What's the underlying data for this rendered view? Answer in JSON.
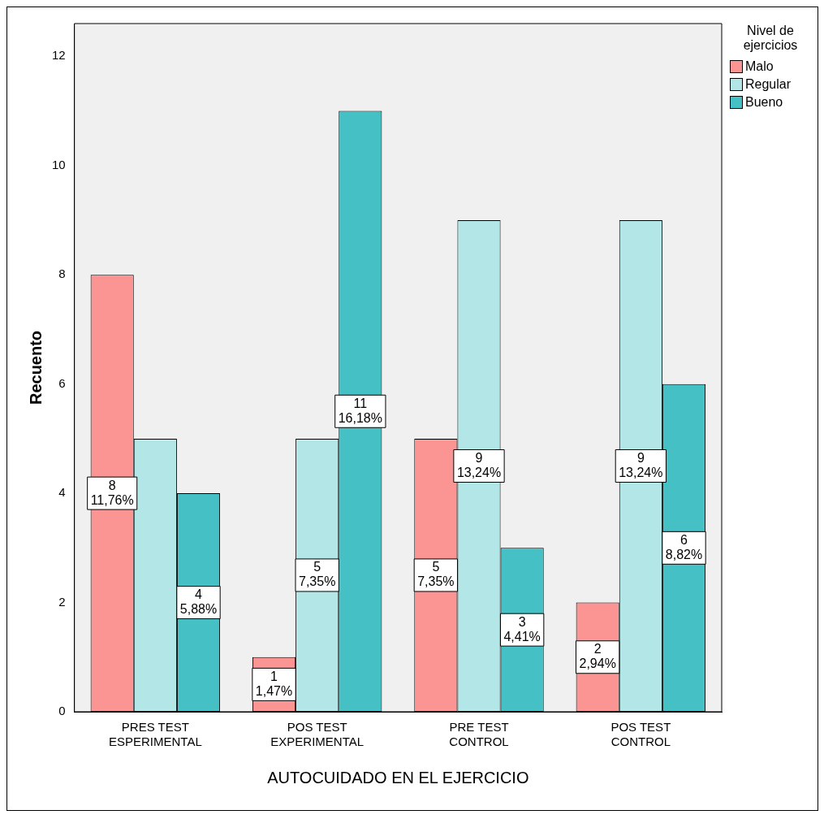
{
  "chart_data": {
    "type": "bar",
    "xlabel": "AUTOCUIDADO EN EL EJERCICIO",
    "ylabel": "Recuento",
    "legend_title": "Nivel de\nejercicios",
    "legend": "top right",
    "categories": [
      "PRES TEST\nESPERIMENTAL",
      "POS TEST\nEXPERIMENTAL",
      "PRE TEST\nCONTROL",
      "POS TEST\nCONTROL"
    ],
    "series": [
      {
        "name": "Malo",
        "color": "#fb9593",
        "values": [
          8,
          1,
          5,
          2
        ],
        "value_labels": [
          "8\n11,76%",
          "1\n1,47%",
          "5\n7,35%",
          "2\n2,94%"
        ]
      },
      {
        "name": "Regular",
        "color": "#b3e6e6",
        "values": [
          5,
          5,
          9,
          9
        ],
        "value_labels": [
          null,
          "5\n7,35%",
          "9\n13,24%",
          "9\n13,24%"
        ]
      },
      {
        "name": "Bueno",
        "color": "#45c0c4",
        "values": [
          4,
          11,
          3,
          6
        ],
        "value_labels": [
          "4\n5,88%",
          "11\n16,18%",
          "3\n4,41%",
          "6\n8,82%"
        ]
      }
    ],
    "ylim": [
      0,
      12.6
    ],
    "yticks": [
      0,
      2,
      4,
      6,
      8,
      10,
      12
    ],
    "grid": false
  }
}
